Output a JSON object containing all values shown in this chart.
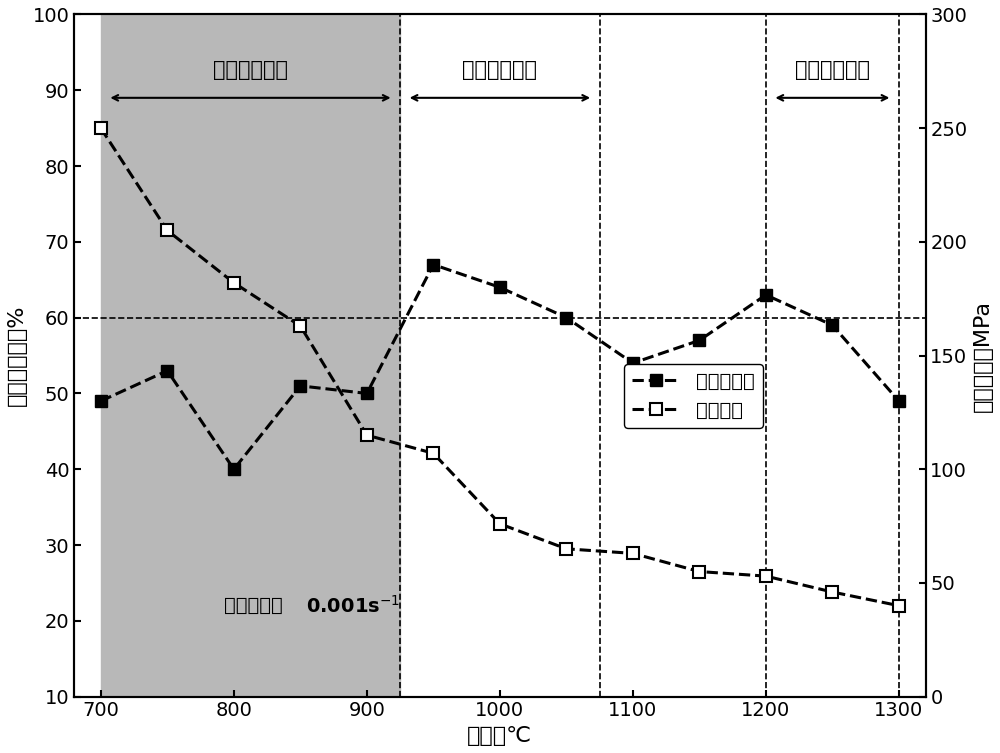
{
  "reduction_temps": [
    700,
    750,
    800,
    850,
    900,
    950,
    1000,
    1050,
    1100,
    1150,
    1200,
    1250,
    1300
  ],
  "reduction_values": [
    49,
    53,
    40,
    51,
    50,
    67,
    64,
    60,
    54,
    57,
    63,
    59,
    49
  ],
  "strength_temps": [
    700,
    750,
    800,
    850,
    900,
    950,
    1000,
    1050,
    1100,
    1150,
    1200,
    1250,
    1300
  ],
  "strength_values": [
    250,
    205,
    182,
    163,
    115,
    107,
    76,
    65,
    63,
    55,
    53,
    46,
    40
  ],
  "xlabel": "温度，℃",
  "ylabel_left": "断面收缩率，%",
  "ylabel_right": "抵拉强度，MPa",
  "xlim": [
    680,
    1320
  ],
  "ylim_left": [
    10,
    100
  ],
  "ylim_right": [
    0,
    300
  ],
  "xticks": [
    700,
    800,
    900,
    1000,
    1100,
    1200,
    1300
  ],
  "yticks_left": [
    10,
    20,
    30,
    40,
    50,
    60,
    70,
    80,
    90,
    100
  ],
  "yticks_right": [
    0,
    50,
    100,
    150,
    200,
    250,
    300
  ],
  "hline_y": 60,
  "gray_region_x1": 700,
  "gray_region_x2": 925,
  "dashed_vlines": [
    925,
    1075,
    1200,
    1300
  ],
  "zone3_label": "第三脆性区间",
  "zone2_label": "第二脆性区间",
  "zone1_label": "第一脆性区间",
  "strain_rate_label_cn": "应变速率，",
  "strain_rate_label_num": "0.001s",
  "legend_reduction": "断面收缩率",
  "legend_strength": "抵拉强度",
  "background_color": "#ffffff",
  "gray_color": "#b8b8b8",
  "line_color": "#000000"
}
